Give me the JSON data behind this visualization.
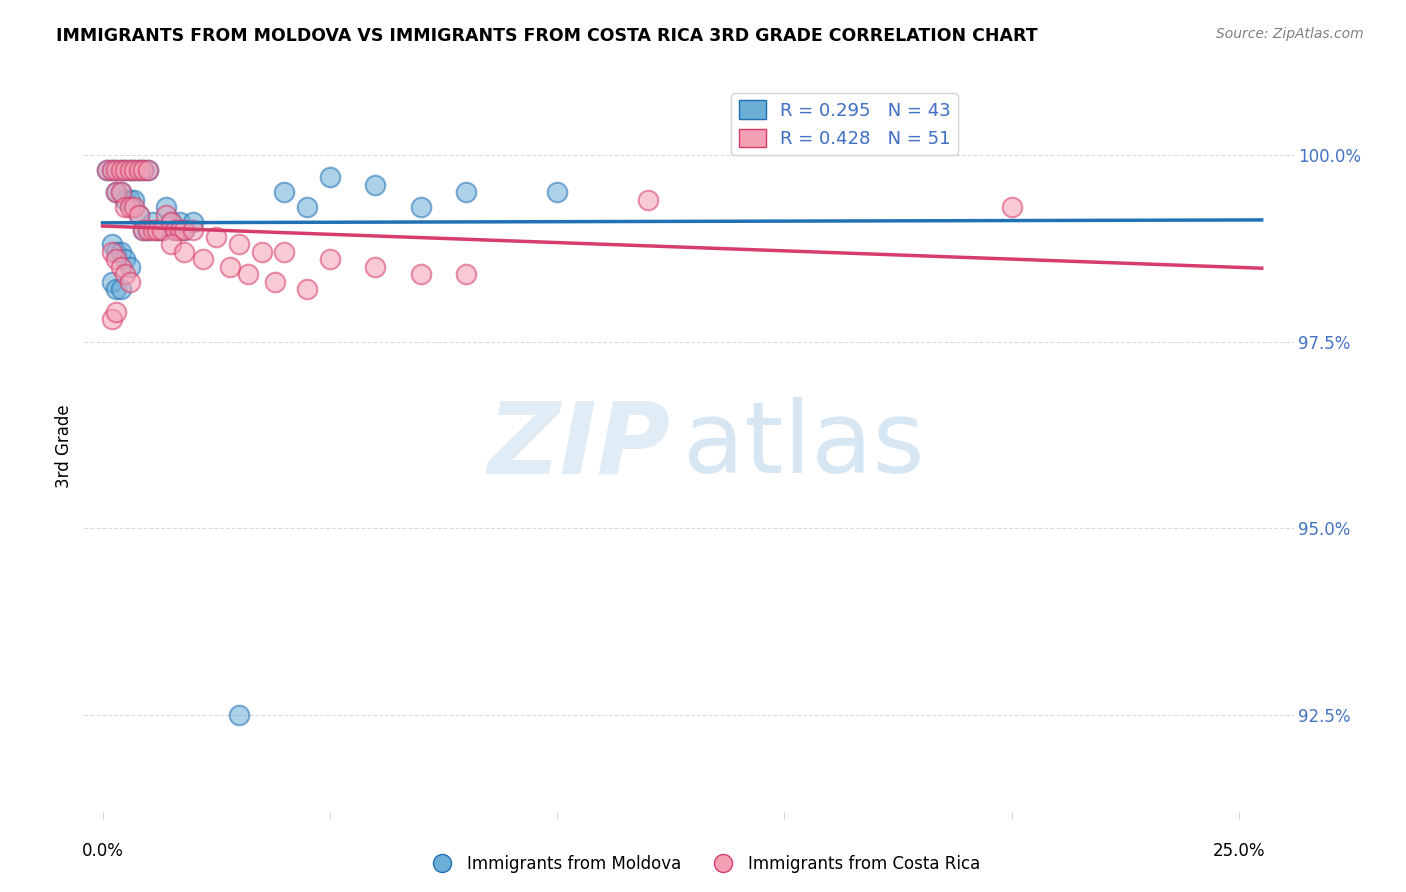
{
  "title": "IMMIGRANTS FROM MOLDOVA VS IMMIGRANTS FROM COSTA RICA 3RD GRADE CORRELATION CHART",
  "source": "Source: ZipAtlas.com",
  "ylabel": "3rd Grade",
  "y_ticks": [
    92.5,
    95.0,
    97.5,
    100.0
  ],
  "y_tick_labels": [
    "92.5%",
    "95.0%",
    "97.5%",
    "100.0%"
  ],
  "ylim": [
    91.2,
    101.0
  ],
  "xlim": [
    -0.004,
    0.262
  ],
  "legend_r1": "R = 0.295",
  "legend_n1": "N = 43",
  "legend_r2": "R = 0.428",
  "legend_n2": "N = 51",
  "color_moldova": "#6baed6",
  "color_costarica": "#f4a0b5",
  "color_line_moldova": "#2171b5",
  "color_line_costarica": "#d63d6a",
  "tick_color": "#4472c4",
  "moldova_x": [
    0.001,
    0.002,
    0.003,
    0.003,
    0.004,
    0.004,
    0.005,
    0.005,
    0.006,
    0.006,
    0.007,
    0.007,
    0.008,
    0.008,
    0.009,
    0.009,
    0.01,
    0.01,
    0.011,
    0.012,
    0.013,
    0.014,
    0.015,
    0.016,
    0.017,
    0.018,
    0.02,
    0.002,
    0.003,
    0.004,
    0.005,
    0.006,
    0.002,
    0.003,
    0.004,
    0.04,
    0.05,
    0.06,
    0.08,
    0.1,
    0.045,
    0.07,
    0.03
  ],
  "moldova_y": [
    99.8,
    99.8,
    99.8,
    99.5,
    99.8,
    99.5,
    99.8,
    99.4,
    99.8,
    99.4,
    99.8,
    99.4,
    99.8,
    99.2,
    99.8,
    99.0,
    99.8,
    99.0,
    99.1,
    99.0,
    99.0,
    99.3,
    99.1,
    99.0,
    99.1,
    99.0,
    99.1,
    98.8,
    98.7,
    98.7,
    98.6,
    98.5,
    98.3,
    98.2,
    98.2,
    99.5,
    99.7,
    99.6,
    99.5,
    99.5,
    99.3,
    99.3,
    92.5
  ],
  "costarica_x": [
    0.001,
    0.002,
    0.003,
    0.003,
    0.004,
    0.004,
    0.005,
    0.005,
    0.006,
    0.006,
    0.007,
    0.007,
    0.008,
    0.008,
    0.009,
    0.009,
    0.01,
    0.01,
    0.011,
    0.012,
    0.013,
    0.014,
    0.015,
    0.016,
    0.017,
    0.018,
    0.002,
    0.003,
    0.004,
    0.005,
    0.006,
    0.002,
    0.003,
    0.02,
    0.025,
    0.03,
    0.035,
    0.04,
    0.05,
    0.06,
    0.07,
    0.08,
    0.015,
    0.018,
    0.022,
    0.028,
    0.032,
    0.038,
    0.045,
    0.2,
    0.12
  ],
  "costarica_y": [
    99.8,
    99.8,
    99.8,
    99.5,
    99.8,
    99.5,
    99.8,
    99.3,
    99.8,
    99.3,
    99.8,
    99.3,
    99.8,
    99.2,
    99.8,
    99.0,
    99.8,
    99.0,
    99.0,
    99.0,
    99.0,
    99.2,
    99.1,
    99.0,
    99.0,
    99.0,
    98.7,
    98.6,
    98.5,
    98.4,
    98.3,
    97.8,
    97.9,
    99.0,
    98.9,
    98.8,
    98.7,
    98.7,
    98.6,
    98.5,
    98.4,
    98.4,
    98.8,
    98.7,
    98.6,
    98.5,
    98.4,
    98.3,
    98.2,
    99.3,
    99.4
  ]
}
